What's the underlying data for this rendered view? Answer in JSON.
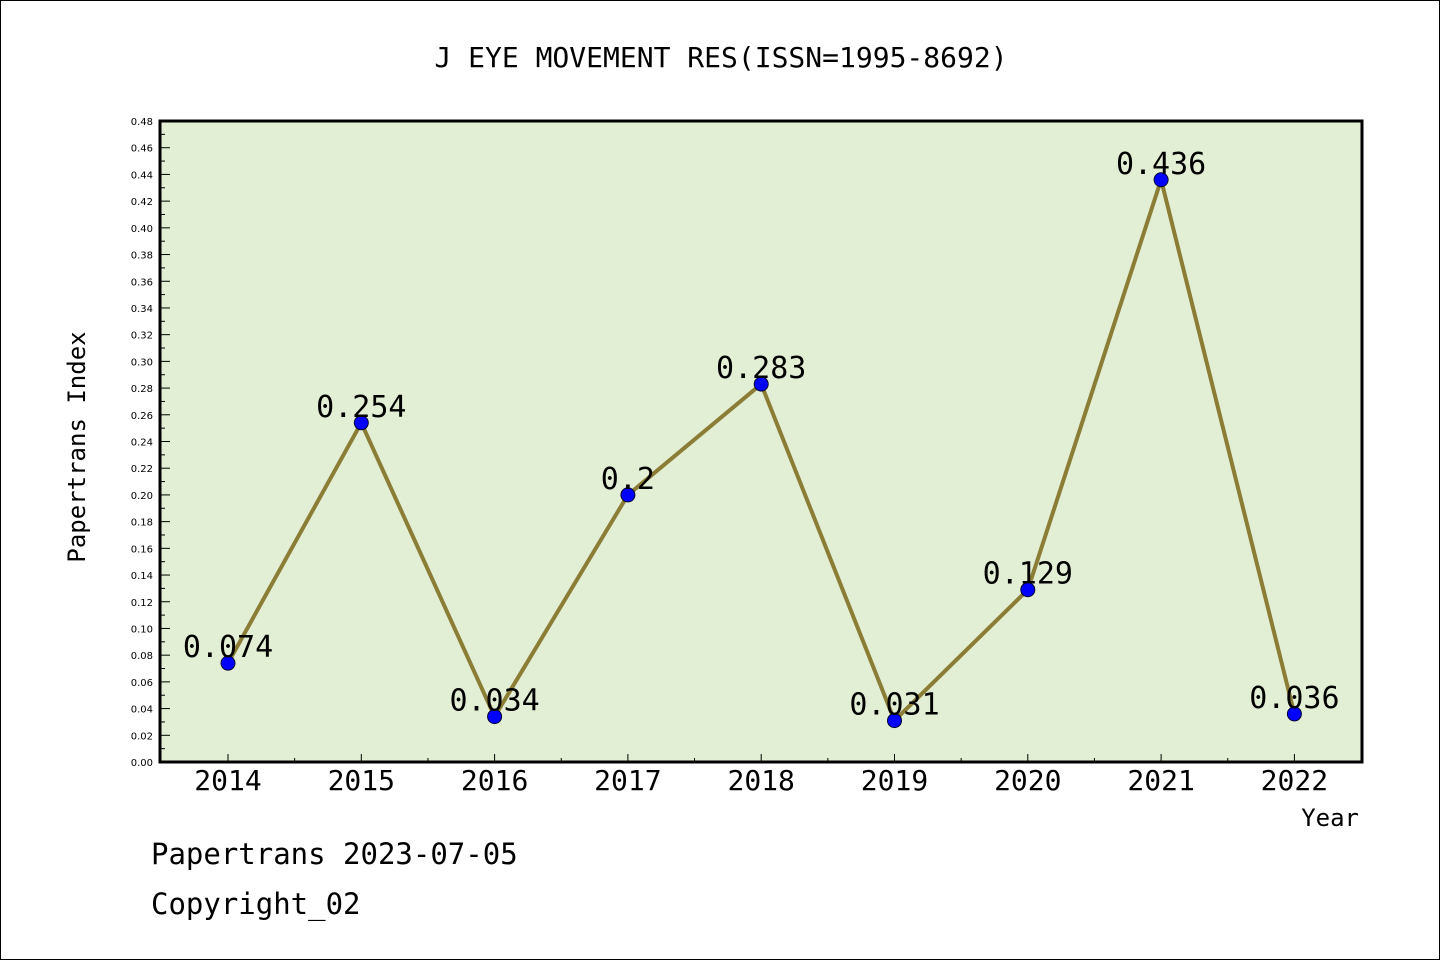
{
  "chart_data": {
    "type": "line",
    "title": "J EYE MOVEMENT RES(ISSN=1995-8692)",
    "xlabel": "Year",
    "ylabel": "Papertrans Index",
    "categories": [
      "2014",
      "2015",
      "2016",
      "2017",
      "2018",
      "2019",
      "2020",
      "2021",
      "2022"
    ],
    "values": [
      0.074,
      0.254,
      0.034,
      0.2,
      0.283,
      0.031,
      0.129,
      0.436,
      0.036
    ],
    "data_labels": [
      "0.074",
      "0.254",
      "0.034",
      "0.2",
      "0.283",
      "0.031",
      "0.129",
      "0.436",
      "0.036"
    ],
    "ylim": [
      0,
      0.48
    ],
    "yticks": [
      "0.00",
      "0.02",
      "0.04",
      "0.06",
      "0.08",
      "0.10",
      "0.12",
      "0.14",
      "0.16",
      "0.18",
      "0.20",
      "0.22",
      "0.24",
      "0.26",
      "0.28",
      "0.30",
      "0.32",
      "0.34",
      "0.36",
      "0.38",
      "0.40",
      "0.42",
      "0.44",
      "0.46",
      "0.48"
    ],
    "grid": false,
    "colors": {
      "plot_background": "#e2efd5",
      "line": "#8b7d35",
      "marker": "#0000ff"
    }
  },
  "footer": {
    "line1": "Papertrans 2023-07-05",
    "line2": "Copyright_02"
  }
}
